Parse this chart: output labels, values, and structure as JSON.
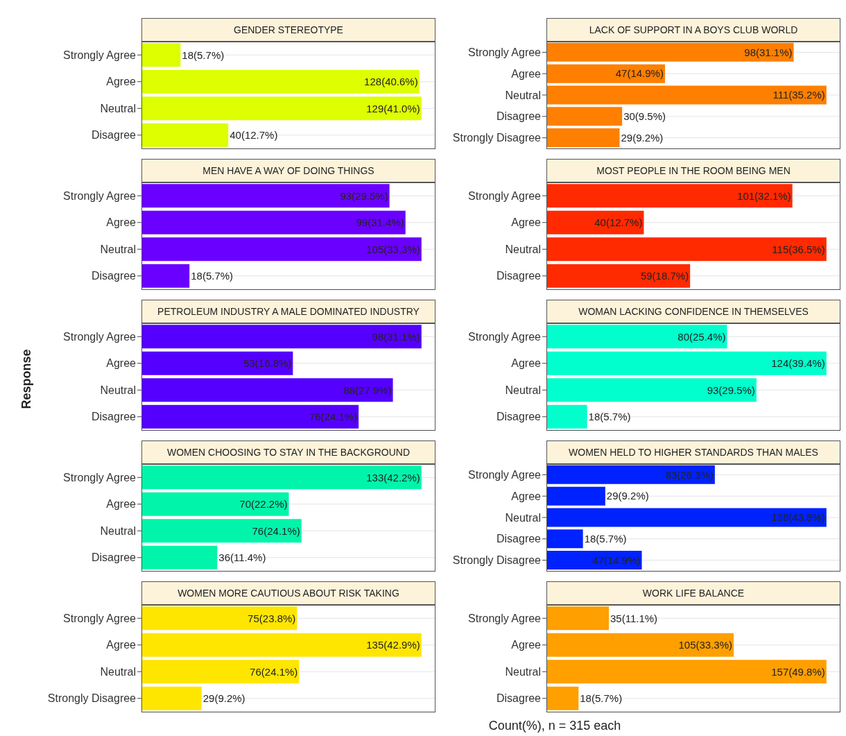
{
  "chart_data": [
    {
      "type": "bar",
      "orientation": "horizontal",
      "title": "GENDER STEREOTYPE",
      "categories": [
        "Strongly Agree",
        "Agree",
        "Neutral",
        "Disagree"
      ],
      "values": [
        18,
        128,
        129,
        40
      ],
      "value_labels": [
        "18(5.7%)",
        "128(40.6%)",
        "129(41.0%)",
        "40(12.7%)"
      ],
      "color": "#ddff00",
      "grid": true,
      "tick_labels": "y"
    },
    {
      "type": "bar",
      "orientation": "horizontal",
      "title": "LACK OF SUPPORT IN A BOYS CLUB WORLD",
      "categories": [
        "Strongly Agree",
        "Agree",
        "Neutral",
        "Disagree",
        "Strongly Disagree"
      ],
      "values": [
        98,
        47,
        111,
        30,
        29
      ],
      "value_labels": [
        "98(31.1%)",
        "47(14.9%)",
        "111(35.2%)",
        "30(9.5%)",
        "29(9.2%)"
      ],
      "color": "#ff7f00",
      "grid": true,
      "tick_labels": "y"
    },
    {
      "type": "bar",
      "orientation": "horizontal",
      "title": "MEN HAVE A WAY OF DOING THINGS",
      "categories": [
        "Strongly Agree",
        "Agree",
        "Neutral",
        "Disagree"
      ],
      "values": [
        93,
        99,
        105,
        18
      ],
      "value_labels": [
        "93(29.5%)",
        "99(31.4%)",
        "105(33.3%)",
        "18(5.7%)"
      ],
      "color": "#6a00ff",
      "grid": true,
      "tick_labels": "y"
    },
    {
      "type": "bar",
      "orientation": "horizontal",
      "title": "MOST PEOPLE IN THE ROOM BEING MEN",
      "categories": [
        "Strongly Agree",
        "Agree",
        "Neutral",
        "Disagree"
      ],
      "values": [
        101,
        40,
        115,
        59
      ],
      "value_labels": [
        "101(32.1%)",
        "40(12.7%)",
        "115(36.5%)",
        "59(18.7%)"
      ],
      "color": "#ff2a00",
      "grid": true,
      "tick_labels": "y"
    },
    {
      "type": "bar",
      "orientation": "horizontal",
      "title": "PETROLEUM INDUSTRY A MALE DOMINATED INDUSTRY",
      "ylabel": "Response",
      "categories": [
        "Strongly Agree",
        "Agree",
        "Neutral",
        "Disagree"
      ],
      "values": [
        98,
        53,
        88,
        76
      ],
      "value_labels": [
        "98(31.1%)",
        "53(16.8%)",
        "88(27.9%)",
        "76(24.1%)"
      ],
      "color": "#5500ff",
      "grid": true,
      "tick_labels": "y"
    },
    {
      "type": "bar",
      "orientation": "horizontal",
      "title": "WOMAN LACKING CONFIDENCE IN THEMSELVES",
      "categories": [
        "Strongly Agree",
        "Agree",
        "Neutral",
        "Disagree"
      ],
      "values": [
        80,
        124,
        93,
        18
      ],
      "value_labels": [
        "80(25.4%)",
        "124(39.4%)",
        "93(29.5%)",
        "18(5.7%)"
      ],
      "color": "#00ffcc",
      "grid": true,
      "tick_labels": "y"
    },
    {
      "type": "bar",
      "orientation": "horizontal",
      "title": "WOMEN CHOOSING TO STAY IN THE BACKGROUND",
      "categories": [
        "Strongly Agree",
        "Agree",
        "Neutral",
        "Disagree"
      ],
      "values": [
        133,
        70,
        76,
        36
      ],
      "value_labels": [
        "133(42.2%)",
        "70(22.2%)",
        "76(24.1%)",
        "36(11.4%)"
      ],
      "color": "#00f5aa",
      "grid": true,
      "tick_labels": "y"
    },
    {
      "type": "bar",
      "orientation": "horizontal",
      "title": "WOMEN HELD TO HIGHER STANDARDS THAN MALES",
      "categories": [
        "Strongly Agree",
        "Agree",
        "Neutral",
        "Disagree",
        "Strongly Disagree"
      ],
      "values": [
        83,
        29,
        138,
        18,
        47
      ],
      "value_labels": [
        "83(26.3%)",
        "29(9.2%)",
        "138(43.8%)",
        "18(5.7%)",
        "47(14.9%)"
      ],
      "color": "#0022ff",
      "grid": true,
      "tick_labels": "y"
    },
    {
      "type": "bar",
      "orientation": "horizontal",
      "title": "WOMEN MORE CAUTIOUS ABOUT RISK TAKING",
      "categories": [
        "Strongly Agree",
        "Agree",
        "Neutral",
        "Strongly Disagree"
      ],
      "values": [
        75,
        135,
        76,
        29
      ],
      "value_labels": [
        "75(23.8%)",
        "135(42.9%)",
        "76(24.1%)",
        "29(9.2%)"
      ],
      "color": "#ffe600",
      "grid": true,
      "tick_labels": "y"
    },
    {
      "type": "bar",
      "orientation": "horizontal",
      "title": "WORK LIFE BALANCE",
      "xlabel": "Count(%), n = 315 each",
      "categories": [
        "Strongly Agree",
        "Agree",
        "Neutral",
        "Disagree"
      ],
      "values": [
        35,
        105,
        157,
        18
      ],
      "value_labels": [
        "35(11.1%)",
        "105(33.3%)",
        "157(49.8%)",
        "18(5.7%)"
      ],
      "color": "#ff9f00",
      "grid": true,
      "tick_labels": "y"
    }
  ]
}
